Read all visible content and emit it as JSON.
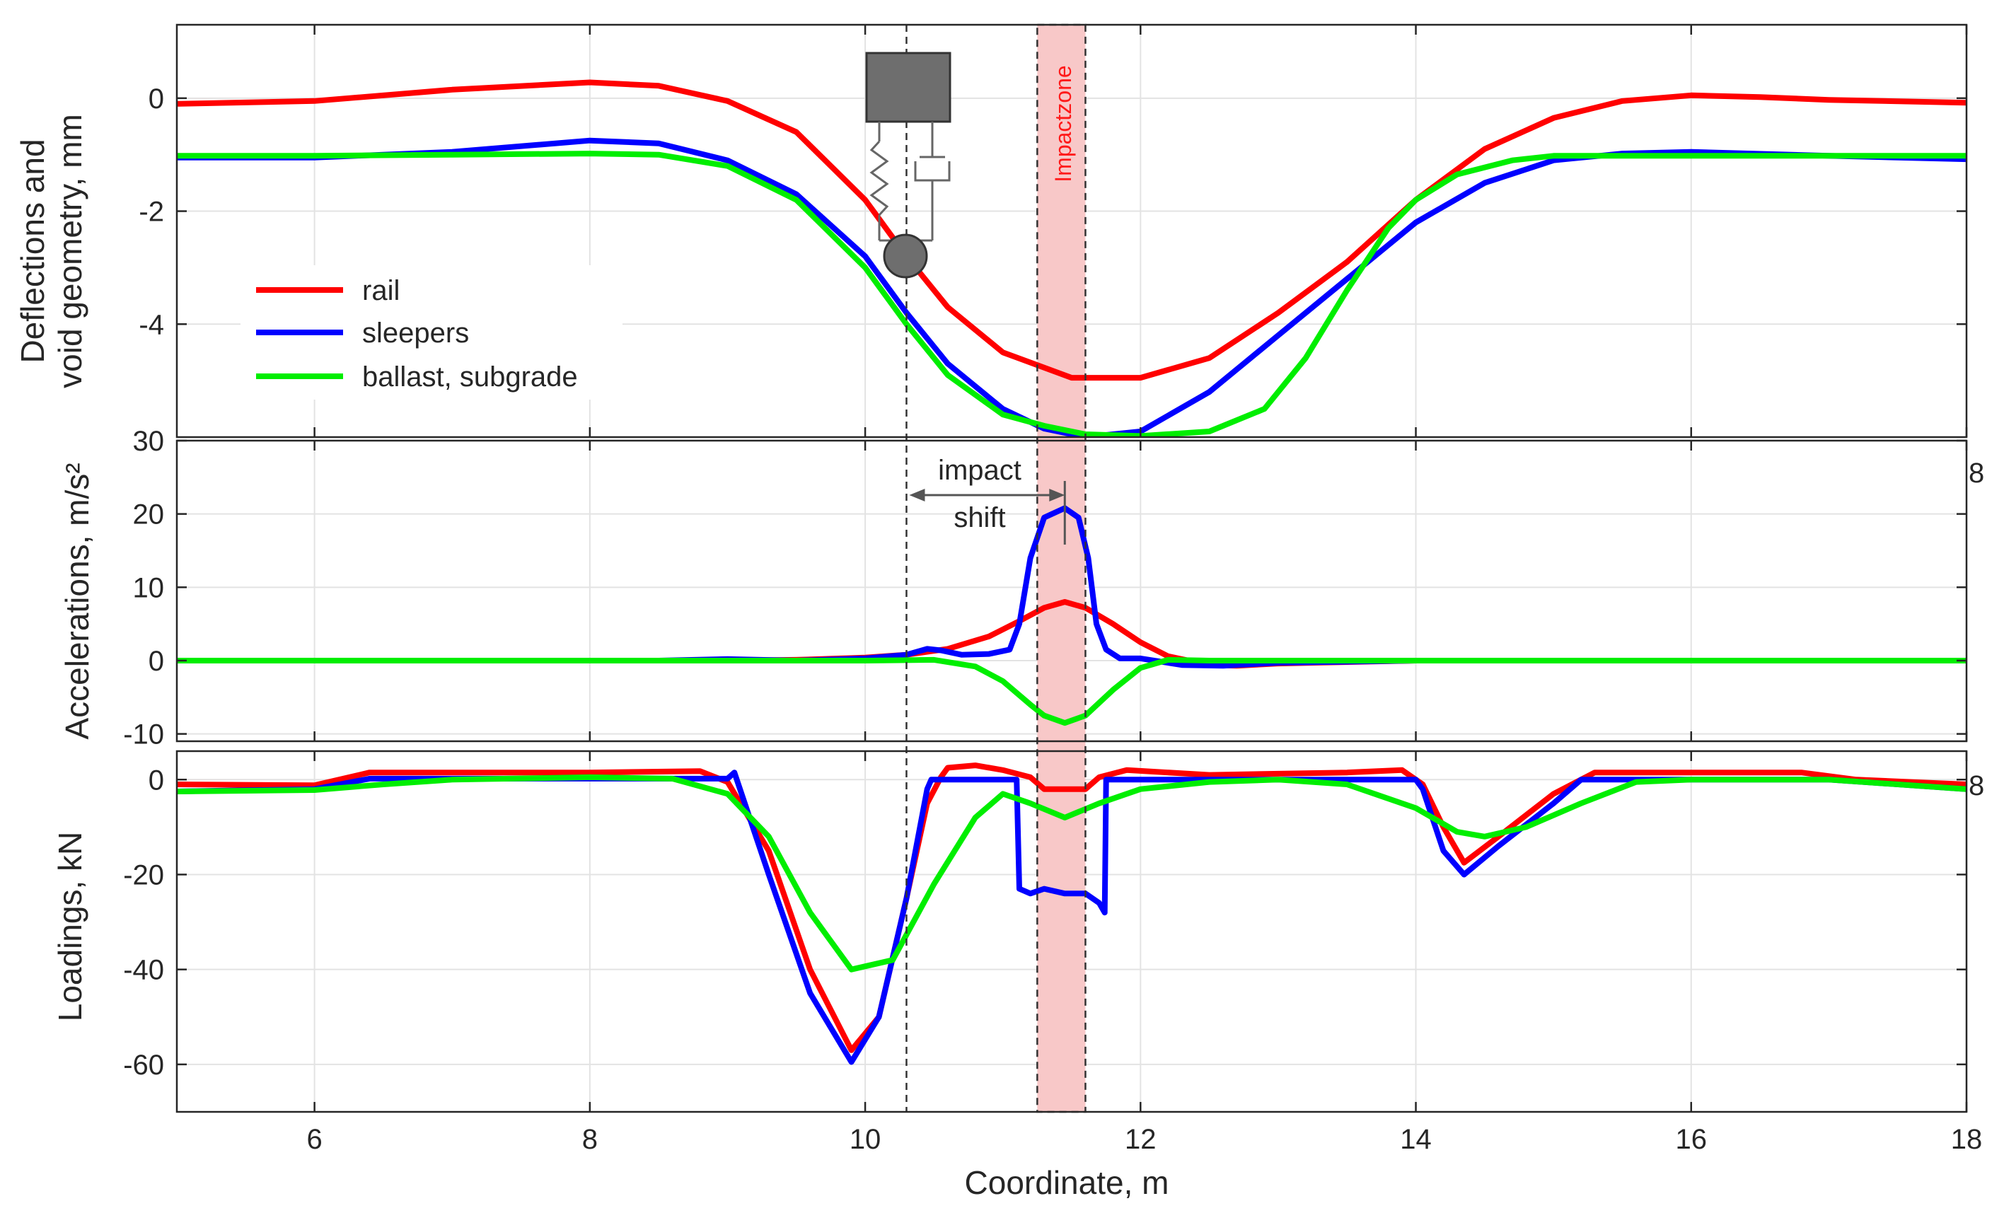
{
  "chart_data": [
    {
      "type": "line",
      "panel": "deflections",
      "ylabel_lines": [
        "Deflections and",
        "void geometry, mm"
      ],
      "xlim": [
        5,
        18
      ],
      "ylim": [
        -6,
        1.3
      ],
      "yticks": [
        0,
        -2,
        -4
      ],
      "ytick_labels": [
        "0",
        "-2",
        "-4"
      ],
      "series": [
        {
          "name": "rail",
          "color": "#ff0000",
          "x": [
            5,
            6,
            7,
            8,
            8.5,
            9,
            9.5,
            10,
            10.3,
            10.6,
            11,
            11.5,
            12,
            12.5,
            13,
            13.5,
            14,
            14.5,
            15,
            15.5,
            16,
            16.5,
            17,
            18
          ],
          "y": [
            -0.1,
            -0.05,
            0.15,
            0.28,
            0.22,
            -0.05,
            -0.6,
            -1.8,
            -2.8,
            -3.7,
            -4.5,
            -4.95,
            -4.95,
            -4.6,
            -3.8,
            -2.9,
            -1.8,
            -0.9,
            -0.35,
            -0.05,
            0.05,
            0.02,
            -0.03,
            -0.08
          ]
        },
        {
          "name": "sleepers",
          "color": "#0000ff",
          "x": [
            5,
            6,
            7,
            8,
            8.5,
            9,
            9.5,
            10,
            10.3,
            10.6,
            11,
            11.3,
            11.6,
            12,
            12.5,
            13,
            13.5,
            14,
            14.5,
            15,
            15.5,
            16,
            17,
            18
          ],
          "y": [
            -1.05,
            -1.05,
            -0.95,
            -0.75,
            -0.8,
            -1.1,
            -1.7,
            -2.8,
            -3.8,
            -4.7,
            -5.5,
            -5.85,
            -6.0,
            -5.9,
            -5.2,
            -4.2,
            -3.2,
            -2.2,
            -1.5,
            -1.1,
            -0.98,
            -0.95,
            -1.02,
            -1.08
          ]
        },
        {
          "name": "ballast, subgrade",
          "color": "#00ee00",
          "x": [
            5,
            6,
            7,
            8,
            8.5,
            9,
            9.5,
            10,
            10.3,
            10.6,
            11,
            11.3,
            11.6,
            12,
            12.5,
            12.9,
            13.2,
            13.5,
            13.8,
            14,
            14.3,
            14.7,
            15,
            16,
            17,
            18
          ],
          "y": [
            -1.02,
            -1.02,
            -1.0,
            -0.98,
            -1.0,
            -1.2,
            -1.8,
            -3.0,
            -4.0,
            -4.9,
            -5.6,
            -5.8,
            -5.95,
            -5.98,
            -5.9,
            -5.5,
            -4.6,
            -3.4,
            -2.3,
            -1.8,
            -1.35,
            -1.1,
            -1.02,
            -1.02,
            -1.02,
            -1.02
          ]
        }
      ],
      "legend": [
        "rail",
        "sleepers",
        "ballast, subgrade"
      ],
      "legend_location": "lower-left"
    },
    {
      "type": "line",
      "panel": "accelerations",
      "ylabel": "Accelerations, m/s²",
      "xlim": [
        5,
        18
      ],
      "ylim": [
        -11,
        30
      ],
      "yticks": [
        30,
        20,
        10,
        0,
        -10
      ],
      "ytick_labels": [
        "30",
        "20",
        "10",
        "0",
        "-10"
      ],
      "right_label": "8",
      "series": [
        {
          "name": "rail",
          "color": "#ff0000",
          "x": [
            5,
            9,
            9.5,
            10,
            10.3,
            10.6,
            10.9,
            11.1,
            11.3,
            11.45,
            11.6,
            11.8,
            12,
            12.2,
            12.5,
            12.7,
            13,
            14,
            18
          ],
          "y": [
            0,
            0,
            0.1,
            0.4,
            0.8,
            1.6,
            3.3,
            5.2,
            7.2,
            8.0,
            7.2,
            5.0,
            2.5,
            0.6,
            -0.6,
            -0.7,
            -0.4,
            0,
            0
          ]
        },
        {
          "name": "sleepers",
          "color": "#0000ff",
          "x": [
            5,
            8.5,
            9,
            9.5,
            10,
            10.3,
            10.45,
            10.55,
            10.7,
            10.9,
            11.05,
            11.12,
            11.2,
            11.3,
            11.45,
            11.55,
            11.62,
            11.68,
            11.75,
            11.85,
            12,
            12.3,
            12.6,
            13,
            14,
            18
          ],
          "y": [
            0,
            0,
            0.2,
            0,
            0.3,
            0.8,
            1.6,
            1.4,
            0.8,
            0.9,
            1.5,
            5,
            14,
            19.5,
            20.8,
            19.5,
            14,
            5,
            1.5,
            0.3,
            0.3,
            -0.6,
            -0.7,
            -0.3,
            0,
            0
          ]
        },
        {
          "name": "ballast, subgrade",
          "color": "#00ee00",
          "x": [
            5,
            10,
            10.5,
            10.8,
            11,
            11.2,
            11.3,
            11.45,
            11.6,
            11.8,
            12,
            12.2,
            12.5,
            18
          ],
          "y": [
            0,
            0,
            0.1,
            -0.8,
            -2.8,
            -6.0,
            -7.5,
            -8.5,
            -7.5,
            -4.0,
            -1.0,
            0.1,
            0,
            0
          ]
        }
      ]
    },
    {
      "type": "line",
      "panel": "loadings",
      "ylabel": "Loadings, kN",
      "xlabel": "Coordinate, m",
      "xlim": [
        5,
        18
      ],
      "ylim": [
        -70,
        6
      ],
      "xticks": [
        6,
        8,
        10,
        12,
        14,
        16,
        18
      ],
      "xtick_labels": [
        "6",
        "8",
        "10",
        "12",
        "14",
        "16",
        "18"
      ],
      "yticks": [
        0,
        -20,
        -40,
        -60
      ],
      "ytick_labels": [
        "0",
        "-20",
        "-40",
        "-60"
      ],
      "right_label": "8",
      "series": [
        {
          "name": "rail",
          "color": "#ff0000",
          "x": [
            5,
            6,
            6.4,
            7,
            8,
            8.8,
            9.0,
            9.3,
            9.6,
            9.9,
            10.1,
            10.3,
            10.45,
            10.55,
            10.6,
            10.8,
            11.0,
            11.2,
            11.3,
            11.45,
            11.6,
            11.7,
            11.9,
            12.5,
            13.5,
            13.9,
            14.05,
            14.2,
            14.35,
            14.6,
            15.0,
            15.3,
            16,
            16.8,
            17.2,
            18
          ],
          "y": [
            -1,
            -1.2,
            1.5,
            1.5,
            1.5,
            1.8,
            -0.5,
            -15,
            -40,
            -57,
            -50,
            -25,
            -5,
            0.5,
            2.5,
            3,
            2,
            0.5,
            -2,
            -2,
            -2,
            0.5,
            2,
            1,
            1.5,
            2,
            -1,
            -10,
            -17.5,
            -12,
            -3,
            1.5,
            1.5,
            1.5,
            0,
            -1
          ]
        },
        {
          "name": "sleepers",
          "color": "#0000ff",
          "x": [
            5,
            6,
            6.4,
            7,
            8,
            9.0,
            9.05,
            9.3,
            9.6,
            9.9,
            10.1,
            10.3,
            10.45,
            10.48,
            11.0,
            11.1,
            11.12,
            11.2,
            11.3,
            11.45,
            11.6,
            11.7,
            11.74,
            11.75,
            12.5,
            14.0,
            14.05,
            14.2,
            14.35,
            14.6,
            15.0,
            15.2,
            16,
            17,
            18
          ],
          "y": [
            -2.5,
            -2,
            0.2,
            0.2,
            0.2,
            0.2,
            1.5,
            -20,
            -45,
            -59.5,
            -50,
            -25,
            -2,
            0,
            0,
            0,
            -23,
            -24,
            -23,
            -24,
            -24,
            -26,
            -28,
            0,
            0,
            0,
            -2,
            -15,
            -20,
            -14,
            -5,
            0,
            0,
            0,
            -2
          ]
        },
        {
          "name": "ballast, subgrade",
          "color": "#00ee00",
          "x": [
            5,
            6,
            6.5,
            7,
            8,
            8.6,
            9,
            9.3,
            9.6,
            9.9,
            10.2,
            10.5,
            10.8,
            11,
            11.2,
            11.45,
            11.7,
            12,
            12.5,
            13,
            13.5,
            14,
            14.3,
            14.5,
            14.8,
            15.2,
            15.6,
            16,
            17,
            18
          ],
          "y": [
            -2.5,
            -2.2,
            -1,
            0,
            0.5,
            0.2,
            -3,
            -12,
            -28,
            -40,
            -38,
            -22,
            -8,
            -3,
            -5,
            -8,
            -5,
            -2,
            -0.5,
            0,
            -1,
            -6,
            -11,
            -12,
            -10,
            -5,
            -0.5,
            0,
            0,
            -2
          ]
        }
      ]
    }
  ],
  "annotations": {
    "impact_zone_label": "Impactzone",
    "impact_shift_label_1": "impact",
    "impact_shift_label_2": "shift",
    "dashed_line_x": 10.3,
    "impact_zone_x": [
      11.25,
      11.6
    ],
    "impact_arrow_to_x": 11.45,
    "impact_zone_color": "#f8c8c8"
  }
}
